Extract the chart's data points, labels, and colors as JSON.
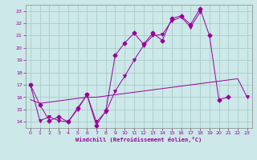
{
  "xlabel": "Windchill (Refroidissement éolien,°C)",
  "background_color": "#cce8e8",
  "grid_color": "#aacccc",
  "line_color": "#990099",
  "xlim": [
    -0.5,
    23.5
  ],
  "ylim": [
    13.5,
    23.5
  ],
  "xticks": [
    0,
    1,
    2,
    3,
    4,
    5,
    6,
    7,
    8,
    9,
    10,
    11,
    12,
    13,
    14,
    15,
    16,
    17,
    18,
    19,
    20,
    21,
    22,
    23
  ],
  "yticks": [
    14,
    15,
    16,
    17,
    18,
    19,
    20,
    21,
    22,
    23
  ],
  "series1_x": [
    0,
    1,
    2,
    3,
    4,
    5,
    6,
    7,
    8,
    9,
    10,
    11,
    12,
    13,
    14,
    15,
    16,
    17,
    18,
    19,
    20,
    21,
    22,
    23
  ],
  "series1_y": [
    17.0,
    15.4,
    14.1,
    14.4,
    14.0,
    15.1,
    16.2,
    13.7,
    14.9,
    19.4,
    20.4,
    21.2,
    20.3,
    21.2,
    20.6,
    22.4,
    22.6,
    21.9,
    23.2,
    21.0,
    15.8,
    16.0,
    null,
    null
  ],
  "series2_x": [
    0,
    1,
    2,
    3,
    4,
    5,
    6,
    7,
    8,
    9,
    10,
    11,
    12,
    13,
    14,
    15,
    16,
    17,
    18,
    19,
    20,
    21,
    22,
    23
  ],
  "series2_y": [
    17.0,
    14.1,
    14.4,
    14.1,
    14.0,
    15.0,
    16.2,
    14.0,
    14.8,
    16.5,
    17.7,
    19.0,
    20.2,
    21.0,
    21.1,
    22.2,
    22.5,
    21.7,
    22.9,
    null,
    null,
    null,
    null,
    16.0
  ],
  "series3_x": [
    0,
    1,
    2,
    3,
    4,
    5,
    6,
    7,
    8,
    9,
    10,
    11,
    12,
    13,
    14,
    15,
    16,
    17,
    18,
    19,
    20,
    21,
    22,
    23
  ],
  "series3_y": [
    15.8,
    15.5,
    15.6,
    15.7,
    15.8,
    15.9,
    16.0,
    16.0,
    16.1,
    16.2,
    16.3,
    16.4,
    16.5,
    16.6,
    16.7,
    16.8,
    16.9,
    17.0,
    17.1,
    17.2,
    17.3,
    17.4,
    17.5,
    16.0
  ]
}
